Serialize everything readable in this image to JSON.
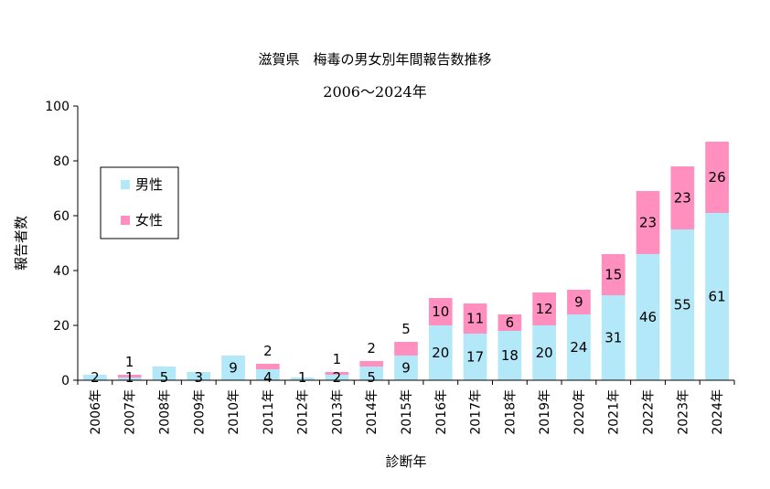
{
  "chart_data": {
    "type": "bar",
    "stacked": true,
    "title": "滋賀県　梅毒の男女別年間報告数推移",
    "subtitle": "2006～2024年",
    "xlabel": "診断年",
    "ylabel": "報告者数",
    "ylim": [
      0,
      100
    ],
    "yticks": [
      "0",
      "20",
      "40",
      "60",
      "80",
      "100"
    ],
    "grid": false,
    "legend_position": "upper-left",
    "categories": [
      "2006年",
      "2007年",
      "2008年",
      "2009年",
      "2010年",
      "2011年",
      "2012年",
      "2013年",
      "2014年",
      "2015年",
      "2016年",
      "2017年",
      "2018年",
      "2019年",
      "2020年",
      "2021年",
      "2022年",
      "2023年",
      "2024年"
    ],
    "series": [
      {
        "name": "男性",
        "color": "#b3e8f8",
        "values": [
          2,
          1,
          5,
          3,
          9,
          4,
          1,
          2,
          5,
          9,
          20,
          17,
          18,
          20,
          24,
          31,
          46,
          55,
          61
        ]
      },
      {
        "name": "女性",
        "color": "#ff8fbf",
        "values": [
          0,
          1,
          0,
          0,
          0,
          2,
          0,
          1,
          2,
          5,
          10,
          11,
          6,
          12,
          9,
          15,
          23,
          23,
          26
        ]
      }
    ]
  }
}
